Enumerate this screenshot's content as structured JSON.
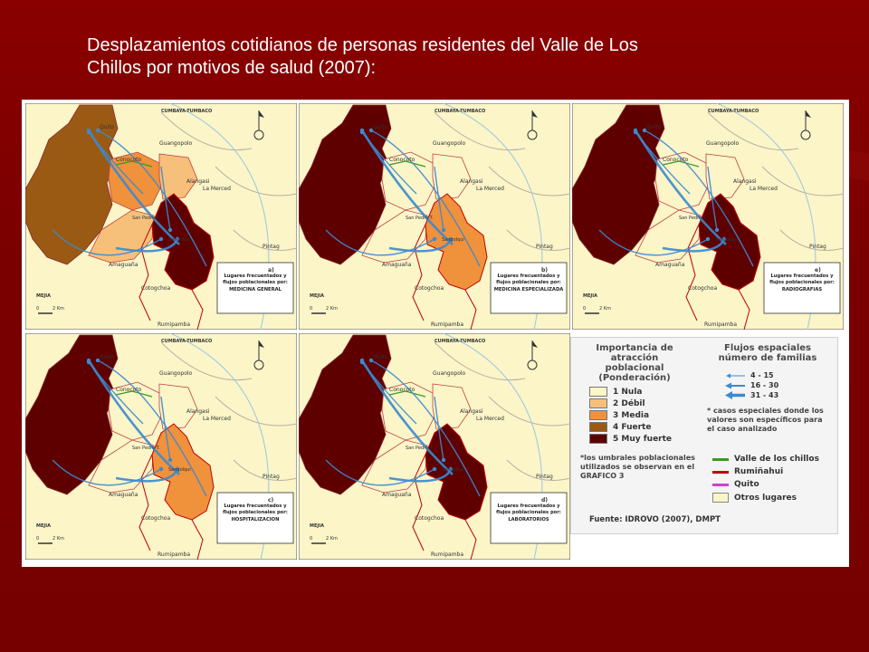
{
  "slide": {
    "title_line1": "Desplazamientos cotidianos de personas residentes del Valle de Los",
    "title_line2": "Chillos por motivos de salud (2007):",
    "background_color": "#7a0000"
  },
  "map_labels": {
    "cumbaya": "CUMBAYA-TUMBACO",
    "quito": "Quito",
    "guangopolo": "Guangopolo",
    "conocoto": "Conocoto",
    "alangasi": "Alangasi",
    "la_merced": "La Merced",
    "san_pedro": "San Pedro T.",
    "sangolqui": "Sangolqui",
    "pintag": "Pintag",
    "amaguana": "Amaguaña",
    "cotogchoa": "Cotogchoa",
    "rumipamba": "Rumipamba",
    "mejia": "MEJIA",
    "scale_zero": "0",
    "scale_km": "2 Km"
  },
  "panels": [
    {
      "letter": "a)",
      "caption": "Lugares frecuentados y flujos poblacionales por:",
      "service": "MEDICINA GENERAL"
    },
    {
      "letter": "b)",
      "caption": "Lugares frecuentados y flujos poblacionales por:",
      "service": "MEDICINA ESPECIALIZADA"
    },
    {
      "letter": "e)",
      "caption": "Lugares frecuentados y flujos poblacionales por:",
      "service": "RADIOGRAFIAS"
    },
    {
      "letter": "c)",
      "caption": "Lugares frecuentados y flujos poblacionales por:",
      "service": "HOSPITALIZACION"
    },
    {
      "letter": "d)",
      "caption": "Lugares frecuentados y flujos poblacionales por:",
      "service": "LABORATORIOS"
    }
  ],
  "legend": {
    "importance_title": "Importancia de atracción poblacional (Ponderación)",
    "importance_items": [
      {
        "label": "1 Nula",
        "color": "#fbf5c8"
      },
      {
        "label": "2 Débil",
        "color": "#f7c07a"
      },
      {
        "label": "3 Media",
        "color": "#f0913c"
      },
      {
        "label": "4 Fuerte",
        "color": "#9a5a14"
      },
      {
        "label": "5 Muy fuerte",
        "color": "#5e0000"
      }
    ],
    "flows_title": "Flujos espaciales número de familias",
    "flow_items": [
      {
        "label": "4 - 15"
      },
      {
        "label": "16 - 30"
      },
      {
        "label": "31 - 43"
      }
    ],
    "flow_note": "* casos especiales donde los valores son específicos para el caso analizado",
    "threshold_note": "*los umbrales poblacionales utilizados se observan en el GRAFICO 3",
    "boundary_items": [
      {
        "label": "Valle de los chillos",
        "color": "#3a9a1e"
      },
      {
        "label": "Rumiñahui",
        "color": "#c00000"
      },
      {
        "label": "Quito",
        "color": "#d040d0"
      },
      {
        "label": "Otros lugares",
        "color": "#fbf5c8"
      }
    ],
    "source": "Fuente: IDROVO (2007), DMPT"
  }
}
